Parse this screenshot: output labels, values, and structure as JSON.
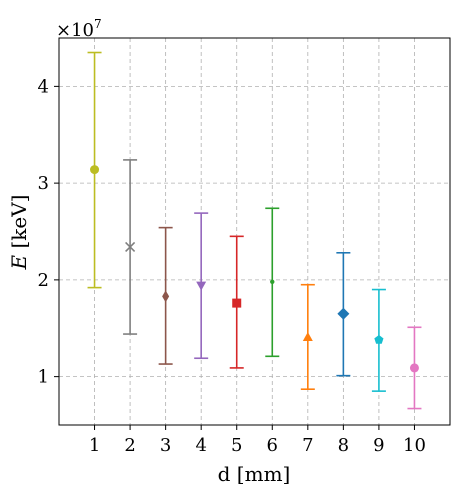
{
  "chart_data": {
    "type": "scatter",
    "title": "",
    "xlabel": "d [mm]",
    "ylabel_main": "E",
    "ylabel_unit": "[keV]",
    "y_multiplier_base": "×10",
    "y_multiplier_exp": "7",
    "x": [
      1,
      2,
      3,
      4,
      5,
      6,
      7,
      8,
      9,
      10
    ],
    "xlim": [
      0,
      11
    ],
    "ylim": [
      0.5,
      4.5
    ],
    "ytick_values": [
      1,
      2,
      3,
      4
    ],
    "grid": true,
    "legend": "none",
    "points": [
      {
        "x": 1,
        "y": 3.14,
        "lower": 1.92,
        "upper": 4.35,
        "color": "#bcbd22",
        "marker": "circle"
      },
      {
        "x": 2,
        "y": 2.34,
        "lower": 1.44,
        "upper": 3.24,
        "color": "#7f7f7f",
        "marker": "x"
      },
      {
        "x": 3,
        "y": 1.83,
        "lower": 1.13,
        "upper": 2.54,
        "color": "#8c564b",
        "marker": "diamond-thin"
      },
      {
        "x": 4,
        "y": 1.94,
        "lower": 1.19,
        "upper": 2.69,
        "color": "#9467bd",
        "marker": "triangle-down"
      },
      {
        "x": 5,
        "y": 1.76,
        "lower": 1.09,
        "upper": 2.45,
        "color": "#d62728",
        "marker": "square"
      },
      {
        "x": 6,
        "y": 1.98,
        "lower": 1.21,
        "upper": 2.74,
        "color": "#2ca02c",
        "marker": "point"
      },
      {
        "x": 7,
        "y": 1.41,
        "lower": 0.87,
        "upper": 1.95,
        "color": "#ff7f0e",
        "marker": "triangle-up"
      },
      {
        "x": 8,
        "y": 1.65,
        "lower": 1.01,
        "upper": 2.28,
        "color": "#1f77b4",
        "marker": "diamond"
      },
      {
        "x": 9,
        "y": 1.38,
        "lower": 0.85,
        "upper": 1.9,
        "color": "#17becf",
        "marker": "pentagon"
      },
      {
        "x": 10,
        "y": 1.09,
        "lower": 0.67,
        "upper": 1.51,
        "color": "#e377c2",
        "marker": "circle"
      }
    ]
  }
}
